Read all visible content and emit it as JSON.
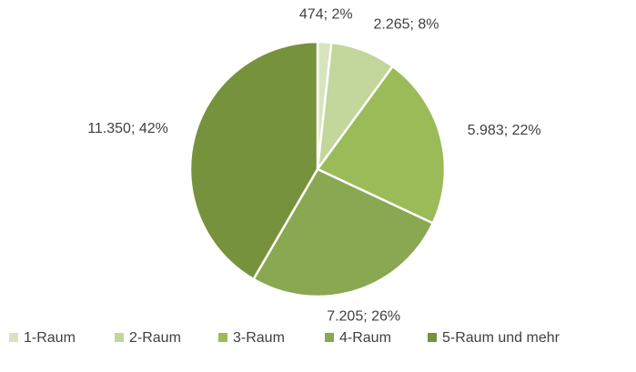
{
  "chart_data": {
    "type": "pie",
    "categories": [
      "1-Raum",
      "2-Raum",
      "3-Raum",
      "4-Raum",
      "5-Raum und mehr"
    ],
    "values": [
      474,
      2265,
      5983,
      7205,
      11350
    ],
    "value_labels": [
      "474; 2%",
      "2.265; 8%",
      "5.983; 22%",
      "7.205; 26%",
      "11.350; 42%"
    ],
    "colors": [
      "#d7e4bd",
      "#c3d69b",
      "#9bbb59",
      "#8aa751",
      "#76923c"
    ],
    "legend": "bottom"
  }
}
